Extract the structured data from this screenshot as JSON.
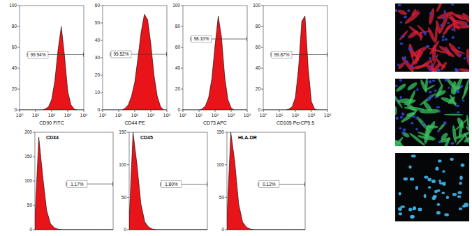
{
  "chart_data": [
    {
      "type": "area",
      "xlabel": "CD90 FITC",
      "color": "#e8141a",
      "log": "x",
      "tick_labels": true,
      "x": [
        1,
        1.58,
        2.51,
        3.98,
        6.31,
        10,
        15.8,
        25.1,
        39.8,
        63.1,
        100,
        158,
        251,
        398,
        631,
        1000,
        1585,
        2512,
        3981,
        6310,
        10000
      ],
      "values": [
        0,
        0,
        0,
        0,
        0,
        0,
        0,
        0,
        1,
        3,
        10,
        28,
        58,
        80,
        52,
        18,
        5,
        1,
        0,
        0,
        0
      ],
      "xlim": [
        1,
        10000
      ],
      "ylim": [
        0,
        100
      ],
      "xticks": [
        {
          "value": 1,
          "label": "10⁰"
        },
        {
          "value": 10,
          "label": "10¹"
        },
        {
          "value": 100,
          "label": "10²"
        },
        {
          "value": 1000,
          "label": "10³"
        },
        {
          "value": 10000,
          "label": "10⁴"
        }
      ],
      "yticks": [
        0,
        20,
        40,
        60,
        80,
        100
      ],
      "gate": {
        "x": [
          3,
          10000
        ],
        "level": 53,
        "value": 99.94,
        "label": "99.94%"
      }
    },
    {
      "type": "area",
      "xlabel": "CD44 PE",
      "color": "#e8141a",
      "log": "x",
      "tick_labels": true,
      "x": [
        1,
        1.58,
        2.51,
        3.98,
        6.31,
        10,
        15.8,
        25.1,
        39.8,
        63.1,
        100,
        158,
        251,
        398,
        631,
        1000,
        1585,
        2512,
        3981,
        6310,
        10000
      ],
      "values": [
        0,
        0,
        0,
        0,
        0,
        0,
        0,
        1,
        3,
        8,
        16,
        30,
        45,
        55,
        52,
        38,
        20,
        8,
        2,
        0,
        0
      ],
      "xlim": [
        1,
        10000
      ],
      "ylim": [
        0,
        60
      ],
      "xticks": [
        {
          "value": 1,
          "label": "10⁰"
        },
        {
          "value": 10,
          "label": "10¹"
        },
        {
          "value": 100,
          "label": "10²"
        },
        {
          "value": 1000,
          "label": "10³"
        },
        {
          "value": 10000,
          "label": "10⁴"
        }
      ],
      "yticks": [
        0,
        10,
        20,
        30,
        40,
        50,
        60
      ],
      "gate": {
        "x": [
          3,
          10000
        ],
        "level": 32,
        "value": 99.52,
        "label": "99.52%"
      }
    },
    {
      "type": "area",
      "xlabel": "CD73 APC",
      "color": "#e8141a",
      "log": "x",
      "tick_labels": true,
      "x": [
        1,
        1.58,
        2.51,
        3.98,
        6.31,
        10,
        15.8,
        25.1,
        39.8,
        63.1,
        100,
        158,
        251,
        398,
        631,
        1000,
        1585,
        2512,
        3981,
        6310,
        10000
      ],
      "values": [
        0,
        0,
        0,
        0,
        0,
        0,
        1,
        4,
        12,
        30,
        62,
        90,
        70,
        32,
        10,
        2,
        0,
        0,
        0,
        0,
        0
      ],
      "xlim": [
        1,
        10000
      ],
      "ylim": [
        0,
        100
      ],
      "xticks": [
        {
          "value": 1,
          "label": "10⁰"
        },
        {
          "value": 10,
          "label": "10¹"
        },
        {
          "value": 100,
          "label": "10²"
        },
        {
          "value": 1000,
          "label": "10³"
        },
        {
          "value": 10000,
          "label": "10⁴"
        }
      ],
      "yticks": [
        0,
        20,
        40,
        60,
        80,
        100
      ],
      "gate": {
        "x": [
          3,
          10000
        ],
        "level": 68,
        "value": 98.1,
        "label": "98.10%"
      }
    },
    {
      "type": "area",
      "xlabel": "CD105 PerCP5.5",
      "color": "#e8141a",
      "log": "x",
      "tick_labels": true,
      "x": [
        1,
        1.58,
        2.51,
        3.98,
        6.31,
        10,
        15.8,
        25.1,
        39.8,
        63.1,
        100,
        158,
        251,
        398,
        631,
        1000,
        1585,
        2512,
        3981,
        6310,
        10000
      ],
      "values": [
        0,
        0,
        0,
        0,
        0,
        0,
        0,
        0,
        1,
        3,
        12,
        40,
        85,
        90,
        40,
        8,
        1,
        0,
        0,
        0,
        0
      ],
      "xlim": [
        1,
        10000
      ],
      "ylim": [
        0,
        100
      ],
      "xticks": [
        {
          "value": 1,
          "label": "10⁰"
        },
        {
          "value": 10,
          "label": "10¹"
        },
        {
          "value": 100,
          "label": "10²"
        },
        {
          "value": 1000,
          "label": "10³"
        },
        {
          "value": 10000,
          "label": "10⁴"
        }
      ],
      "yticks": [
        0,
        20,
        40,
        60,
        80,
        100
      ],
      "gate": {
        "x": [
          3,
          10000
        ],
        "level": 53,
        "value": 99.87,
        "label": "99.87%"
      }
    },
    {
      "type": "area",
      "title": "CD34",
      "color": "#e8141a",
      "log": "x",
      "tick_labels": "y",
      "x": [
        1,
        1.58,
        2.51,
        3.98,
        6.31,
        10,
        15.8,
        25.1,
        39.8,
        63.1,
        100,
        158,
        251,
        398,
        631,
        1000,
        1585,
        2512,
        3981,
        6310,
        10000
      ],
      "values": [
        20,
        190,
        110,
        40,
        12,
        4,
        1,
        0,
        0,
        0,
        0,
        0,
        0,
        0,
        0,
        0,
        0,
        0,
        0,
        0,
        0
      ],
      "xlim": [
        1,
        10000
      ],
      "ylim": [
        0,
        200
      ],
      "yticks": [
        0,
        50,
        100,
        150,
        200
      ],
      "gate": {
        "x": [
          40,
          10000
        ],
        "level": 94,
        "value": 1.17,
        "label": "1.17%"
      }
    },
    {
      "type": "area",
      "title": "CD45",
      "color": "#e8141a",
      "log": "x",
      "tick_labels": "y",
      "x": [
        1,
        1.58,
        2.51,
        3.98,
        6.31,
        10,
        15.8,
        25.1,
        39.8,
        63.1,
        100,
        158,
        251,
        398,
        631,
        1000,
        1585,
        2512,
        3981,
        6310,
        10000
      ],
      "values": [
        15,
        150,
        100,
        40,
        12,
        4,
        1,
        0,
        0,
        0,
        0,
        0,
        0,
        0,
        0,
        0,
        0,
        0,
        0,
        0,
        0
      ],
      "xlim": [
        1,
        10000
      ],
      "ylim": [
        0,
        150
      ],
      "yticks": [
        0,
        50,
        100,
        150
      ],
      "gate": {
        "x": [
          40,
          10000
        ],
        "level": 70,
        "value": 1.8,
        "label": "1.80%"
      }
    },
    {
      "type": "area",
      "title": "HLA-DR",
      "color": "#e8141a",
      "log": "x",
      "tick_labels": "y",
      "x": [
        1,
        1.58,
        2.51,
        3.98,
        6.31,
        10,
        15.8,
        25.1,
        39.8,
        63.1,
        100,
        158,
        251,
        398,
        631,
        1000,
        1585,
        2512,
        3981,
        6310,
        10000
      ],
      "values": [
        15,
        150,
        105,
        40,
        12,
        4,
        1,
        0,
        0,
        0,
        0,
        0,
        0,
        0,
        0,
        0,
        0,
        0,
        0,
        0,
        0
      ],
      "xlim": [
        1,
        10000
      ],
      "ylim": [
        0,
        150
      ],
      "yticks": [
        0,
        50,
        100,
        150
      ],
      "gate": {
        "x": [
          40,
          10000
        ],
        "level": 70,
        "value": 0.12,
        "label": "0.12%"
      }
    }
  ]
}
